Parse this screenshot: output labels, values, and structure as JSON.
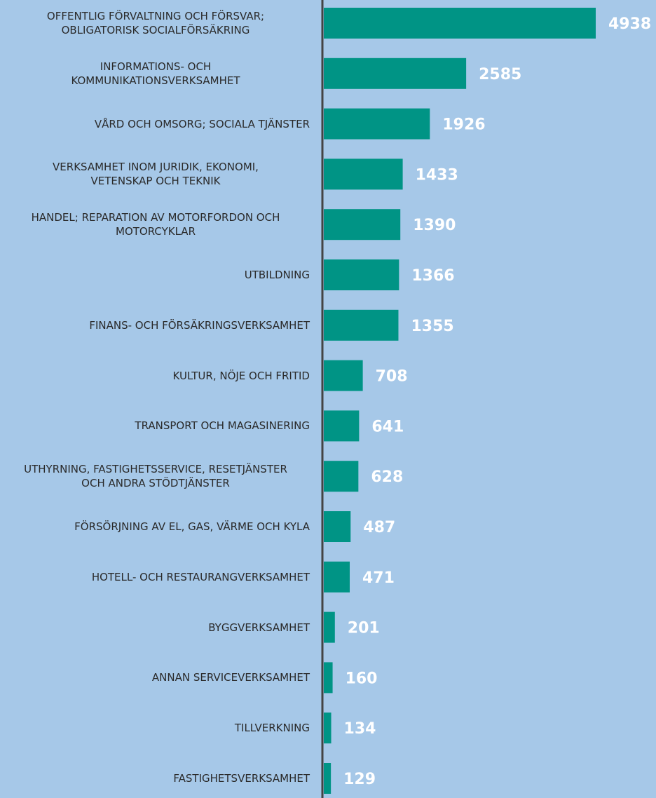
{
  "chart_data": {
    "type": "bar",
    "orientation": "horizontal",
    "color": "#009485",
    "categories": [
      "OFFENTLIG FÖRVALTNING OCH FÖRSVAR;\nOBLIGATORISK SOCIALFÖRSÄKRING",
      "INFORMATIONS- OCH\nKOMMUNIKATIONSVERKSAMHET",
      "VÅRD OCH OMSORG; SOCIALA TJÄNSTER",
      "VERKSAMHET INOM JURIDIK, EKONOMI,\nVETENSKAP OCH TEKNIK",
      "HANDEL; REPARATION AV MOTORFORDON OCH\nMOTORCYKLAR",
      "UTBILDNING",
      "FINANS- OCH FÖRSÄKRINGSVERKSAMHET",
      "KULTUR, NÖJE OCH FRITID",
      "TRANSPORT OCH MAGASINERING",
      "UTHYRNING, FASTIGHETSSERVICE, RESETJÄNSTER\nOCH ANDRA STÖDTJÄNSTER",
      "FÖRSÖRJNING AV EL, GAS, VÄRME OCH KYLA",
      "HOTELL- OCH RESTAURANGVERKSAMHET",
      "BYGGVERKSAMHET",
      "ANNAN SERVICEVERKSAMHET",
      "TILLVERKNING",
      "FASTIGHETSVERKSAMHET"
    ],
    "values": [
      4938,
      2585,
      1926,
      1433,
      1390,
      1366,
      1355,
      708,
      641,
      628,
      487,
      471,
      201,
      160,
      134,
      129
    ]
  }
}
